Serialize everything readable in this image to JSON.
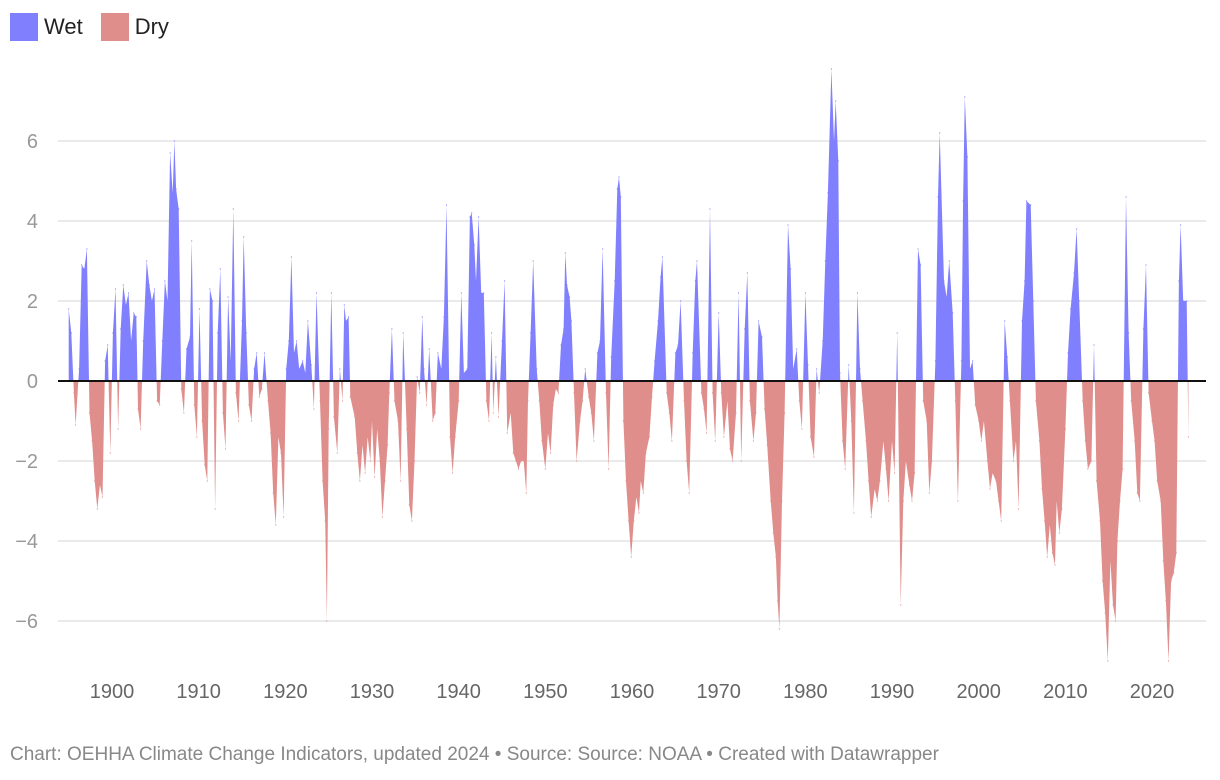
{
  "chart_data": {
    "type": "area",
    "title": "",
    "xlabel": "",
    "ylabel": "",
    "ylim": [
      -7,
      8
    ],
    "xlim": [
      1895,
      2024.5
    ],
    "grid": "horizontal",
    "legend_placement": "top-left",
    "y_ticks": [
      "-6",
      "-4",
      "-2",
      "0",
      "2",
      "4",
      "6"
    ],
    "x_ticks": [
      "1900",
      "1910",
      "1920",
      "1930",
      "1940",
      "1950",
      "1960",
      "1970",
      "1980",
      "1990",
      "2000",
      "2010",
      "2020"
    ],
    "legend": [
      {
        "name": "Wet",
        "color": "#8080ff"
      },
      {
        "name": "Dry",
        "color": "#e08e8c"
      }
    ],
    "points": [
      [
        1895.0,
        1.8
      ],
      [
        1895.3,
        1.2
      ],
      [
        1895.6,
        -0.3
      ],
      [
        1895.8,
        -1.1
      ],
      [
        1896.2,
        0.3
      ],
      [
        1896.5,
        2.9
      ],
      [
        1896.8,
        2.8
      ],
      [
        1897.1,
        3.3
      ],
      [
        1897.4,
        -0.8
      ],
      [
        1897.7,
        -1.5
      ],
      [
        1898.0,
        -2.5
      ],
      [
        1898.3,
        -3.2
      ],
      [
        1898.6,
        -2.6
      ],
      [
        1898.9,
        -2.9
      ],
      [
        1899.2,
        0.5
      ],
      [
        1899.5,
        0.9
      ],
      [
        1899.8,
        -1.8
      ],
      [
        1900.1,
        1.2
      ],
      [
        1900.4,
        2.3
      ],
      [
        1900.7,
        -1.2
      ],
      [
        1901.0,
        1.3
      ],
      [
        1901.3,
        2.4
      ],
      [
        1901.6,
        1.9
      ],
      [
        1901.9,
        2.2
      ],
      [
        1902.2,
        1.0
      ],
      [
        1902.5,
        1.7
      ],
      [
        1902.8,
        1.6
      ],
      [
        1903.0,
        -0.7
      ],
      [
        1903.3,
        -1.2
      ],
      [
        1903.6,
        1.0
      ],
      [
        1904.0,
        3.0
      ],
      [
        1904.3,
        2.4
      ],
      [
        1904.6,
        2.0
      ],
      [
        1904.9,
        2.3
      ],
      [
        1905.2,
        -0.5
      ],
      [
        1905.5,
        -0.6
      ],
      [
        1905.8,
        1.0
      ],
      [
        1906.1,
        2.5
      ],
      [
        1906.4,
        2.0
      ],
      [
        1906.7,
        5.7
      ],
      [
        1907.0,
        4.7
      ],
      [
        1907.2,
        6.0
      ],
      [
        1907.4,
        4.8
      ],
      [
        1907.7,
        4.3
      ],
      [
        1908.0,
        -0.2
      ],
      [
        1908.3,
        -0.8
      ],
      [
        1908.6,
        0.8
      ],
      [
        1909.0,
        1.1
      ],
      [
        1909.2,
        3.5
      ],
      [
        1909.5,
        -0.6
      ],
      [
        1909.8,
        -1.4
      ],
      [
        1910.1,
        1.8
      ],
      [
        1910.4,
        -1.0
      ],
      [
        1910.7,
        -2.1
      ],
      [
        1911.0,
        -2.5
      ],
      [
        1911.3,
        2.3
      ],
      [
        1911.6,
        2.0
      ],
      [
        1911.9,
        -3.2
      ],
      [
        1912.2,
        1.2
      ],
      [
        1912.5,
        2.8
      ],
      [
        1912.8,
        -0.8
      ],
      [
        1913.1,
        -1.7
      ],
      [
        1913.4,
        2.1
      ],
      [
        1913.7,
        0.5
      ],
      [
        1914.0,
        4.3
      ],
      [
        1914.3,
        -0.3
      ],
      [
        1914.6,
        -1.0
      ],
      [
        1915.0,
        1.5
      ],
      [
        1915.2,
        3.6
      ],
      [
        1915.5,
        1.2
      ],
      [
        1915.8,
        -0.6
      ],
      [
        1916.1,
        -1.0
      ],
      [
        1916.4,
        0.3
      ],
      [
        1916.7,
        0.7
      ],
      [
        1917.0,
        -0.4
      ],
      [
        1917.3,
        -0.2
      ],
      [
        1917.6,
        0.7
      ],
      [
        1918.0,
        -0.5
      ],
      [
        1918.3,
        -1.3
      ],
      [
        1918.6,
        -2.8
      ],
      [
        1918.9,
        -3.6
      ],
      [
        1919.2,
        -1.4
      ],
      [
        1919.5,
        -1.8
      ],
      [
        1919.8,
        -3.4
      ],
      [
        1920.1,
        0.3
      ],
      [
        1920.4,
        1.0
      ],
      [
        1920.7,
        3.1
      ],
      [
        1921.0,
        0.7
      ],
      [
        1921.3,
        1.0
      ],
      [
        1921.6,
        0.3
      ],
      [
        1922.0,
        0.5
      ],
      [
        1922.3,
        0.2
      ],
      [
        1922.6,
        1.5
      ],
      [
        1923.0,
        0.4
      ],
      [
        1923.3,
        -0.7
      ],
      [
        1923.6,
        2.2
      ],
      [
        1924.0,
        -0.5
      ],
      [
        1924.3,
        -2.5
      ],
      [
        1924.6,
        -3.5
      ],
      [
        1924.8,
        -6.0
      ],
      [
        1925.0,
        -1.2
      ],
      [
        1925.3,
        2.2
      ],
      [
        1925.6,
        -0.9
      ],
      [
        1926.0,
        -1.8
      ],
      [
        1926.3,
        0.3
      ],
      [
        1926.6,
        -0.5
      ],
      [
        1926.8,
        1.9
      ],
      [
        1927.0,
        1.5
      ],
      [
        1927.3,
        1.6
      ],
      [
        1927.5,
        -0.4
      ],
      [
        1928.0,
        -0.9
      ],
      [
        1928.3,
        -1.8
      ],
      [
        1928.6,
        -2.5
      ],
      [
        1928.9,
        -1.6
      ],
      [
        1929.2,
        -2.3
      ],
      [
        1929.5,
        -1.4
      ],
      [
        1929.8,
        -2.0
      ],
      [
        1930.0,
        -1.0
      ],
      [
        1930.3,
        -2.4
      ],
      [
        1930.6,
        -1.2
      ],
      [
        1930.9,
        -2.0
      ],
      [
        1931.2,
        -3.4
      ],
      [
        1931.5,
        -2.5
      ],
      [
        1931.8,
        -1.6
      ],
      [
        1932.0,
        -0.3
      ],
      [
        1932.3,
        1.3
      ],
      [
        1932.6,
        -0.5
      ],
      [
        1933.0,
        -1.0
      ],
      [
        1933.3,
        -2.5
      ],
      [
        1933.6,
        1.2
      ],
      [
        1934.0,
        -1.2
      ],
      [
        1934.3,
        -3.1
      ],
      [
        1934.6,
        -3.5
      ],
      [
        1934.9,
        -2.0
      ],
      [
        1935.2,
        0.1
      ],
      [
        1935.5,
        -0.3
      ],
      [
        1935.8,
        1.6
      ],
      [
        1936.0,
        0.3
      ],
      [
        1936.3,
        -0.6
      ],
      [
        1936.6,
        0.8
      ],
      [
        1937.0,
        -1.0
      ],
      [
        1937.3,
        -0.8
      ],
      [
        1937.6,
        0.7
      ],
      [
        1938.0,
        0.3
      ],
      [
        1938.3,
        1.6
      ],
      [
        1938.6,
        4.4
      ],
      [
        1939.0,
        -1.4
      ],
      [
        1939.3,
        -2.3
      ],
      [
        1939.6,
        -1.4
      ],
      [
        1940.0,
        -0.5
      ],
      [
        1940.3,
        2.2
      ],
      [
        1940.6,
        0.2
      ],
      [
        1941.0,
        0.3
      ],
      [
        1941.3,
        4.1
      ],
      [
        1941.5,
        4.2
      ],
      [
        1941.8,
        3.4
      ],
      [
        1942.0,
        2.5
      ],
      [
        1942.3,
        4.1
      ],
      [
        1942.6,
        2.2
      ],
      [
        1942.9,
        2.2
      ],
      [
        1943.2,
        -0.5
      ],
      [
        1943.5,
        -1.0
      ],
      [
        1943.8,
        1.2
      ],
      [
        1944.0,
        -0.8
      ],
      [
        1944.3,
        0.6
      ],
      [
        1944.6,
        -0.9
      ],
      [
        1945.0,
        1.0
      ],
      [
        1945.3,
        2.5
      ],
      [
        1945.6,
        -1.3
      ],
      [
        1946.0,
        -0.8
      ],
      [
        1946.3,
        -1.8
      ],
      [
        1946.6,
        -2.0
      ],
      [
        1946.9,
        -2.2
      ],
      [
        1947.2,
        -2.0
      ],
      [
        1947.5,
        -2.0
      ],
      [
        1947.8,
        -2.8
      ],
      [
        1948.0,
        -0.5
      ],
      [
        1948.3,
        1.2
      ],
      [
        1948.6,
        3.0
      ],
      [
        1949.0,
        0.3
      ],
      [
        1949.3,
        -0.5
      ],
      [
        1949.6,
        -1.5
      ],
      [
        1950.0,
        -2.2
      ],
      [
        1950.3,
        -1.3
      ],
      [
        1950.6,
        -1.8
      ],
      [
        1950.9,
        -0.6
      ],
      [
        1951.2,
        -0.2
      ],
      [
        1951.5,
        -0.3
      ],
      [
        1951.8,
        0.9
      ],
      [
        1952.1,
        1.3
      ],
      [
        1952.3,
        3.2
      ],
      [
        1952.5,
        2.4
      ],
      [
        1952.8,
        2.1
      ],
      [
        1953.0,
        1.5
      ],
      [
        1953.3,
        -0.3
      ],
      [
        1953.6,
        -2.0
      ],
      [
        1954.0,
        -1.0
      ],
      [
        1954.3,
        -0.5
      ],
      [
        1954.6,
        0.3
      ],
      [
        1955.0,
        -0.4
      ],
      [
        1955.3,
        -0.8
      ],
      [
        1955.6,
        -1.5
      ],
      [
        1956.0,
        0.7
      ],
      [
        1956.3,
        1.0
      ],
      [
        1956.6,
        3.3
      ],
      [
        1957.0,
        -0.3
      ],
      [
        1957.3,
        -2.2
      ],
      [
        1957.6,
        0.6
      ],
      [
        1958.0,
        2.5
      ],
      [
        1958.3,
        4.8
      ],
      [
        1958.5,
        5.1
      ],
      [
        1958.7,
        4.6
      ],
      [
        1959.0,
        -1.0
      ],
      [
        1959.3,
        -2.5
      ],
      [
        1959.6,
        -3.5
      ],
      [
        1959.9,
        -4.4
      ],
      [
        1960.2,
        -3.5
      ],
      [
        1960.5,
        -2.9
      ],
      [
        1960.8,
        -3.3
      ],
      [
        1961.0,
        -2.5
      ],
      [
        1961.3,
        -2.8
      ],
      [
        1961.6,
        -1.8
      ],
      [
        1962.0,
        -1.4
      ],
      [
        1962.3,
        -0.4
      ],
      [
        1962.6,
        0.5
      ],
      [
        1963.0,
        1.5
      ],
      [
        1963.3,
        2.6
      ],
      [
        1963.5,
        3.1
      ],
      [
        1964.0,
        -0.3
      ],
      [
        1964.3,
        -0.8
      ],
      [
        1964.6,
        -1.5
      ],
      [
        1965.0,
        0.7
      ],
      [
        1965.3,
        0.9
      ],
      [
        1965.6,
        2.0
      ],
      [
        1966.0,
        -0.5
      ],
      [
        1966.3,
        -2.0
      ],
      [
        1966.6,
        -2.8
      ],
      [
        1967.0,
        0.7
      ],
      [
        1967.3,
        2.5
      ],
      [
        1967.5,
        3.0
      ],
      [
        1968.0,
        -0.3
      ],
      [
        1968.3,
        -0.7
      ],
      [
        1968.6,
        -1.3
      ],
      [
        1969.0,
        4.3
      ],
      [
        1969.3,
        -0.3
      ],
      [
        1969.6,
        -1.5
      ],
      [
        1970.0,
        1.7
      ],
      [
        1970.3,
        -0.3
      ],
      [
        1970.6,
        -1.4
      ],
      [
        1971.0,
        -0.5
      ],
      [
        1971.3,
        -1.7
      ],
      [
        1971.6,
        -2.0
      ],
      [
        1972.0,
        -0.8
      ],
      [
        1972.3,
        2.2
      ],
      [
        1972.6,
        -2.0
      ],
      [
        1973.0,
        1.3
      ],
      [
        1973.3,
        2.7
      ],
      [
        1973.6,
        -0.5
      ],
      [
        1974.0,
        -1.5
      ],
      [
        1974.3,
        -0.8
      ],
      [
        1974.6,
        1.5
      ],
      [
        1975.0,
        1.1
      ],
      [
        1975.3,
        -0.7
      ],
      [
        1975.6,
        -1.6
      ],
      [
        1976.0,
        -3.0
      ],
      [
        1976.3,
        -3.8
      ],
      [
        1976.6,
        -4.4
      ],
      [
        1976.8,
        -5.5
      ],
      [
        1977.0,
        -6.2
      ],
      [
        1977.3,
        -3.0
      ],
      [
        1977.6,
        -0.8
      ],
      [
        1978.0,
        3.9
      ],
      [
        1978.3,
        2.8
      ],
      [
        1978.6,
        0.3
      ],
      [
        1979.0,
        0.8
      ],
      [
        1979.3,
        -0.5
      ],
      [
        1979.6,
        -1.2
      ],
      [
        1980.0,
        2.2
      ],
      [
        1980.3,
        0.4
      ],
      [
        1980.6,
        -1.4
      ],
      [
        1981.0,
        -1.9
      ],
      [
        1981.3,
        0.3
      ],
      [
        1981.6,
        -0.3
      ],
      [
        1982.0,
        1.0
      ],
      [
        1982.3,
        3.0
      ],
      [
        1982.6,
        4.7
      ],
      [
        1983.0,
        7.8
      ],
      [
        1983.3,
        6.0
      ],
      [
        1983.5,
        7.0
      ],
      [
        1983.8,
        5.5
      ],
      [
        1984.0,
        0.2
      ],
      [
        1984.3,
        -1.5
      ],
      [
        1984.6,
        -2.2
      ],
      [
        1985.0,
        0.4
      ],
      [
        1985.3,
        -1.0
      ],
      [
        1985.6,
        -3.3
      ],
      [
        1986.0,
        2.2
      ],
      [
        1986.3,
        0.3
      ],
      [
        1986.6,
        -0.5
      ],
      [
        1987.0,
        -1.5
      ],
      [
        1987.3,
        -2.5
      ],
      [
        1987.6,
        -3.4
      ],
      [
        1988.0,
        -2.7
      ],
      [
        1988.3,
        -3.0
      ],
      [
        1988.6,
        -2.5
      ],
      [
        1989.0,
        -1.5
      ],
      [
        1989.3,
        -2.2
      ],
      [
        1989.6,
        -3.0
      ],
      [
        1990.0,
        -1.5
      ],
      [
        1990.3,
        -2.3
      ],
      [
        1990.6,
        1.2
      ],
      [
        1991.0,
        -5.6
      ],
      [
        1991.3,
        -3.0
      ],
      [
        1991.6,
        -2.0
      ],
      [
        1992.0,
        -2.6
      ],
      [
        1992.3,
        -3.0
      ],
      [
        1992.6,
        -2.3
      ],
      [
        1993.0,
        3.3
      ],
      [
        1993.3,
        2.9
      ],
      [
        1993.6,
        -0.5
      ],
      [
        1994.0,
        -1.0
      ],
      [
        1994.3,
        -2.8
      ],
      [
        1994.6,
        -2.0
      ],
      [
        1995.0,
        0.5
      ],
      [
        1995.3,
        4.6
      ],
      [
        1995.5,
        6.2
      ],
      [
        1996.0,
        2.5
      ],
      [
        1996.3,
        2.1
      ],
      [
        1996.6,
        3.0
      ],
      [
        1997.0,
        1.7
      ],
      [
        1997.3,
        -0.5
      ],
      [
        1997.6,
        -3.0
      ],
      [
        1998.0,
        0.5
      ],
      [
        1998.2,
        4.5
      ],
      [
        1998.4,
        7.1
      ],
      [
        1998.7,
        5.6
      ],
      [
        1999.0,
        0.3
      ],
      [
        1999.3,
        0.5
      ],
      [
        1999.6,
        -0.6
      ],
      [
        2000.0,
        -1.0
      ],
      [
        2000.3,
        -1.5
      ],
      [
        2000.6,
        -1.0
      ],
      [
        2001.0,
        -2.0
      ],
      [
        2001.3,
        -2.7
      ],
      [
        2001.6,
        -2.3
      ],
      [
        2002.0,
        -2.5
      ],
      [
        2002.3,
        -3.0
      ],
      [
        2002.6,
        -3.5
      ],
      [
        2003.0,
        1.5
      ],
      [
        2003.3,
        0.6
      ],
      [
        2003.6,
        -0.5
      ],
      [
        2004.0,
        -2.0
      ],
      [
        2004.3,
        -1.5
      ],
      [
        2004.6,
        -3.2
      ],
      [
        2005.0,
        1.5
      ],
      [
        2005.3,
        2.5
      ],
      [
        2005.5,
        4.5
      ],
      [
        2006.0,
        4.4
      ],
      [
        2006.3,
        2.0
      ],
      [
        2006.6,
        -0.5
      ],
      [
        2007.0,
        -1.5
      ],
      [
        2007.3,
        -2.7
      ],
      [
        2007.6,
        -3.5
      ],
      [
        2007.9,
        -4.4
      ],
      [
        2008.2,
        -3.6
      ],
      [
        2008.5,
        -4.3
      ],
      [
        2008.8,
        -4.6
      ],
      [
        2009.0,
        -3.0
      ],
      [
        2009.3,
        -3.8
      ],
      [
        2009.6,
        -3.2
      ],
      [
        2010.0,
        -1.2
      ],
      [
        2010.3,
        0.7
      ],
      [
        2010.6,
        1.8
      ],
      [
        2011.0,
        2.7
      ],
      [
        2011.3,
        3.8
      ],
      [
        2011.6,
        2.0
      ],
      [
        2012.0,
        -0.5
      ],
      [
        2012.3,
        -1.5
      ],
      [
        2012.6,
        -2.2
      ],
      [
        2013.0,
        -2.0
      ],
      [
        2013.3,
        0.9
      ],
      [
        2013.6,
        -2.5
      ],
      [
        2014.0,
        -3.5
      ],
      [
        2014.3,
        -5.0
      ],
      [
        2014.6,
        -5.8
      ],
      [
        2014.9,
        -7.0
      ],
      [
        2015.2,
        -4.5
      ],
      [
        2015.5,
        -5.6
      ],
      [
        2015.8,
        -6.0
      ],
      [
        2016.0,
        -4.0
      ],
      [
        2016.3,
        -3.0
      ],
      [
        2016.6,
        -2.2
      ],
      [
        2017.0,
        4.6
      ],
      [
        2017.3,
        1.2
      ],
      [
        2017.6,
        -0.5
      ],
      [
        2018.0,
        -1.5
      ],
      [
        2018.3,
        -2.8
      ],
      [
        2018.6,
        -3.0
      ],
      [
        2019.0,
        1.3
      ],
      [
        2019.3,
        2.9
      ],
      [
        2019.6,
        -0.3
      ],
      [
        2020.0,
        -1.0
      ],
      [
        2020.3,
        -1.5
      ],
      [
        2020.6,
        -2.5
      ],
      [
        2021.0,
        -3.0
      ],
      [
        2021.3,
        -4.5
      ],
      [
        2021.6,
        -5.5
      ],
      [
        2021.9,
        -7.0
      ],
      [
        2022.2,
        -5.0
      ],
      [
        2022.5,
        -4.8
      ],
      [
        2022.8,
        -4.3
      ],
      [
        2023.1,
        2.5
      ],
      [
        2023.3,
        3.9
      ],
      [
        2023.6,
        2.0
      ],
      [
        2024.0,
        2.0
      ],
      [
        2024.2,
        -1.4
      ]
    ]
  },
  "footer": "Chart: OEHHA Climate Change Indicators, updated 2024 • Source: Source: NOAA • Created with Datawrapper"
}
